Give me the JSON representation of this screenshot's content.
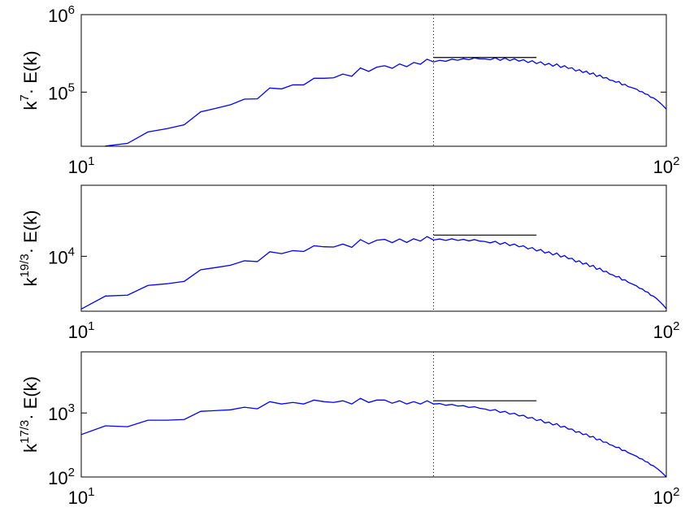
{
  "chart_data": [
    {
      "type": "line",
      "ylabel": {
        "base": "k",
        "exponent": "7",
        "suffix": "· E(k)"
      },
      "xlim": [
        10,
        100
      ],
      "ylim": [
        20000,
        1000000
      ],
      "xticks": [
        {
          "value": 10,
          "label": "10",
          "exponent": "1"
        },
        {
          "value": 100,
          "label": "10",
          "exponent": "2"
        }
      ],
      "yticks": [
        {
          "value": 100000,
          "label": "10",
          "exponent": "5"
        },
        {
          "value": 1000000,
          "label": "10",
          "exponent": "6"
        }
      ],
      "x": [
        10,
        11,
        12,
        13,
        14,
        15,
        16,
        17,
        18,
        19,
        20,
        21,
        22,
        23,
        24,
        25,
        26,
        27,
        28,
        29,
        30,
        31,
        32,
        33,
        34,
        35,
        36,
        37,
        38,
        39,
        40,
        41,
        42,
        43,
        44,
        45,
        46,
        47,
        48,
        49,
        50,
        51,
        52,
        53,
        54,
        55,
        56,
        57,
        58,
        59,
        60,
        61,
        62,
        63,
        64,
        65,
        66,
        67,
        68,
        69,
        70,
        71,
        72,
        73,
        74,
        75,
        76,
        77,
        78,
        79,
        80,
        81,
        82,
        83,
        84,
        85,
        86,
        87,
        88,
        89,
        90,
        91,
        92,
        93,
        94,
        95,
        96,
        97,
        98,
        99,
        100
      ],
      "series": [
        {
          "color": "#0000ff",
          "values": [
            12800,
            20100,
            21800,
            30600,
            33700,
            37900,
            55600,
            61800,
            68700,
            81100,
            81900,
            113000,
            110000,
            124000,
            124000,
            151000,
            151000,
            153000,
            171000,
            160000,
            205000,
            185000,
            210000,
            219000,
            203000,
            231000,
            213000,
            241000,
            229000,
            266000,
            245000,
            257000,
            250000,
            266000,
            258000,
            270000,
            262000,
            276000,
            268000,
            268000,
            261000,
            277000,
            257000,
            275000,
            255000,
            269000,
            251000,
            262000,
            241000,
            254000,
            233000,
            246000,
            224000,
            235000,
            216000,
            231000,
            208000,
            219000,
            202000,
            206000,
            187000,
            195000,
            179000,
            186000,
            170000,
            177000,
            159000,
            166000,
            152000,
            154000,
            143000,
            141000,
            134000,
            137000,
            124000,
            126000,
            118000,
            115000,
            112000,
            109000,
            102000,
            101000,
            94600,
            93100,
            86000,
            84500,
            80100,
            75200,
            70500,
            65400,
            60200
          ]
        }
      ],
      "vline": 40,
      "reference_line": {
        "x": [
          40,
          60
        ],
        "y": 280000,
        "color": "#000000"
      }
    },
    {
      "type": "line",
      "ylabel": {
        "base": "k",
        "exponent": "19/3",
        "suffix": "· E(k)"
      },
      "xlim": [
        10,
        100
      ],
      "ylim": [
        2000,
        80000
      ],
      "xticks": [
        {
          "value": 10,
          "label": "10",
          "exponent": "1"
        },
        {
          "value": 100,
          "label": "10",
          "exponent": "2"
        }
      ],
      "yticks": [
        {
          "value": 10000,
          "label": "10",
          "exponent": "4"
        }
      ],
      "x": [
        10,
        11,
        12,
        13,
        14,
        15,
        16,
        17,
        18,
        19,
        20,
        21,
        22,
        23,
        24,
        25,
        26,
        27,
        28,
        29,
        30,
        31,
        32,
        33,
        34,
        35,
        36,
        37,
        38,
        39,
        40,
        41,
        42,
        43,
        44,
        45,
        46,
        47,
        48,
        49,
        50,
        51,
        52,
        53,
        54,
        55,
        56,
        57,
        58,
        59,
        60,
        61,
        62,
        63,
        64,
        65,
        66,
        67,
        68,
        69,
        70,
        71,
        72,
        73,
        74,
        75,
        76,
        77,
        78,
        79,
        80,
        81,
        82,
        83,
        84,
        85,
        86,
        87,
        88,
        89,
        90,
        91,
        92,
        93,
        94,
        95,
        96,
        97,
        98,
        99,
        100
      ],
      "series": [
        {
          "color": "#0000ff",
          "values": [
            2130,
            3120,
            3200,
            4260,
            4470,
            4800,
            6730,
            7200,
            7690,
            8760,
            8550,
            11400,
            10800,
            11800,
            11500,
            13600,
            13200,
            13100,
            14300,
            13000,
            16300,
            14400,
            16000,
            16400,
            14900,
            16600,
            15000,
            16700,
            15600,
            17800,
            16100,
            16600,
            15900,
            16700,
            15900,
            16400,
            15700,
            16300,
            15600,
            15400,
            14800,
            15500,
            14200,
            15000,
            13700,
            14300,
            13200,
            13600,
            12400,
            12900,
            11700,
            12200,
            11000,
            11400,
            10400,
            11000,
            9800,
            10200,
            9330,
            9420,
            8490,
            8750,
            7960,
            8210,
            7400,
            7650,
            6820,
            7060,
            6390,
            6440,
            5940,
            5800,
            5470,
            5520,
            4990,
            5030,
            4680,
            4510,
            4350,
            4190,
            3920,
            3840,
            3570,
            3490,
            3200,
            3120,
            2940,
            2740,
            2550,
            2350,
            2150
          ]
        }
      ],
      "vline": 40,
      "reference_line": {
        "x": [
          40,
          60
        ],
        "y": 18600,
        "color": "#000000"
      }
    },
    {
      "type": "line",
      "ylabel": {
        "base": "k",
        "exponent": "17/3",
        "suffix": "· E(k)"
      },
      "xlim": [
        10,
        100
      ],
      "ylim": [
        100,
        9000
      ],
      "xticks": [
        {
          "value": 10,
          "label": "10",
          "exponent": "1"
        },
        {
          "value": 100,
          "label": "10",
          "exponent": "2"
        }
      ],
      "yticks": [
        {
          "value": 100,
          "label": "10",
          "exponent": "2"
        },
        {
          "value": 1000,
          "label": "10",
          "exponent": "3"
        }
      ],
      "x": [
        10,
        11,
        12,
        13,
        14,
        15,
        16,
        17,
        18,
        19,
        20,
        21,
        22,
        23,
        24,
        25,
        26,
        27,
        28,
        29,
        30,
        31,
        32,
        33,
        34,
        35,
        36,
        37,
        38,
        39,
        40,
        41,
        42,
        43,
        44,
        45,
        46,
        47,
        48,
        49,
        50,
        51,
        52,
        53,
        54,
        55,
        56,
        57,
        58,
        59,
        60,
        61,
        62,
        63,
        64,
        65,
        66,
        67,
        68,
        69,
        70,
        71,
        72,
        73,
        74,
        75,
        76,
        77,
        78,
        79,
        80,
        81,
        82,
        83,
        84,
        85,
        86,
        87,
        88,
        89,
        90,
        91,
        92,
        93,
        94,
        95,
        96,
        97,
        98,
        99,
        100
      ],
      "series": [
        {
          "color": "#0000ff",
          "values": [
            460,
            630,
            610,
            770,
            770,
            790,
            1060,
            1090,
            1120,
            1230,
            1160,
            1500,
            1380,
            1460,
            1380,
            1590,
            1500,
            1460,
            1550,
            1380,
            1690,
            1460,
            1590,
            1590,
            1420,
            1550,
            1380,
            1500,
            1380,
            1550,
            1380,
            1400,
            1320,
            1360,
            1280,
            1300,
            1220,
            1250,
            1180,
            1150,
            1090,
            1130,
            1020,
            1060,
            960,
            990,
            900,
            920,
            830,
            850,
            760,
            790,
            700,
            720,
            650,
            680,
            600,
            620,
            560,
            560,
            500,
            510,
            460,
            470,
            420,
            430,
            380,
            390,
            350,
            350,
            320,
            310,
            290,
            290,
            260,
            260,
            240,
            230,
            220,
            210,
            195,
            190,
            175,
            170,
            155,
            150,
            140,
            130,
            120,
            110,
            100
          ]
        }
      ],
      "vline": 40,
      "reference_line": {
        "x": [
          40,
          60
        ],
        "y": 1550,
        "color": "#000000"
      }
    }
  ]
}
